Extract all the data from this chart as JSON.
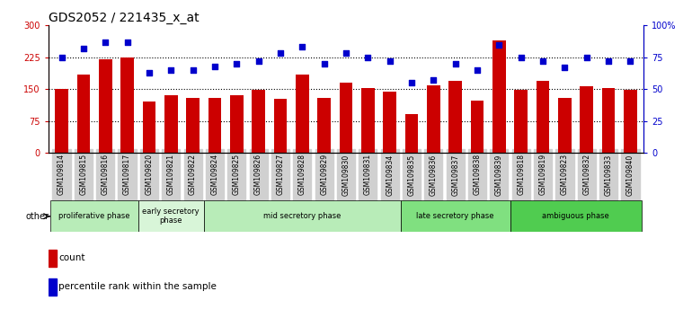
{
  "title": "GDS2052 / 221435_x_at",
  "samples": [
    "GSM109814",
    "GSM109815",
    "GSM109816",
    "GSM109817",
    "GSM109820",
    "GSM109821",
    "GSM109822",
    "GSM109824",
    "GSM109825",
    "GSM109826",
    "GSM109827",
    "GSM109828",
    "GSM109829",
    "GSM109830",
    "GSM109831",
    "GSM109834",
    "GSM109835",
    "GSM109836",
    "GSM109837",
    "GSM109838",
    "GSM109839",
    "GSM109818",
    "GSM109819",
    "GSM109823",
    "GSM109832",
    "GSM109833",
    "GSM109840"
  ],
  "counts": [
    150,
    185,
    220,
    225,
    120,
    135,
    130,
    130,
    135,
    148,
    128,
    185,
    130,
    165,
    153,
    143,
    90,
    158,
    170,
    122,
    265,
    148,
    170,
    130,
    157,
    152,
    148
  ],
  "percentiles": [
    75,
    82,
    87,
    87,
    63,
    65,
    65,
    68,
    70,
    72,
    78,
    83,
    70,
    78,
    75,
    72,
    55,
    57,
    70,
    65,
    85,
    75,
    72,
    67,
    75,
    72,
    72
  ],
  "phases": [
    {
      "label": "proliferative phase",
      "start": 0,
      "end": 4,
      "color": "#b8ecb8"
    },
    {
      "label": "early secretory\nphase",
      "start": 4,
      "end": 7,
      "color": "#d8f5d8"
    },
    {
      "label": "mid secretory phase",
      "start": 7,
      "end": 16,
      "color": "#b8ecb8"
    },
    {
      "label": "late secretory phase",
      "start": 16,
      "end": 21,
      "color": "#80e080"
    },
    {
      "label": "ambiguous phase",
      "start": 21,
      "end": 27,
      "color": "#50cc50"
    }
  ],
  "bar_color": "#cc0000",
  "dot_color": "#0000cc",
  "ylim_left": [
    0,
    300
  ],
  "ylim_right": [
    0,
    100
  ],
  "yticks_left": [
    0,
    75,
    150,
    225,
    300
  ],
  "yticks_right": [
    0,
    25,
    50,
    75,
    100
  ],
  "ytick_labels_left": [
    "0",
    "75",
    "150",
    "225",
    "300"
  ],
  "ytick_labels_right": [
    "0",
    "25",
    "50",
    "75",
    "100%"
  ],
  "hlines": [
    75,
    150,
    225
  ],
  "legend_count_label": "count",
  "legend_pct_label": "percentile rank within the sample",
  "other_label": "other",
  "bg_color_plot": "#ffffff",
  "bg_color_xtick": "#d0d0d0",
  "title_fontsize": 10
}
